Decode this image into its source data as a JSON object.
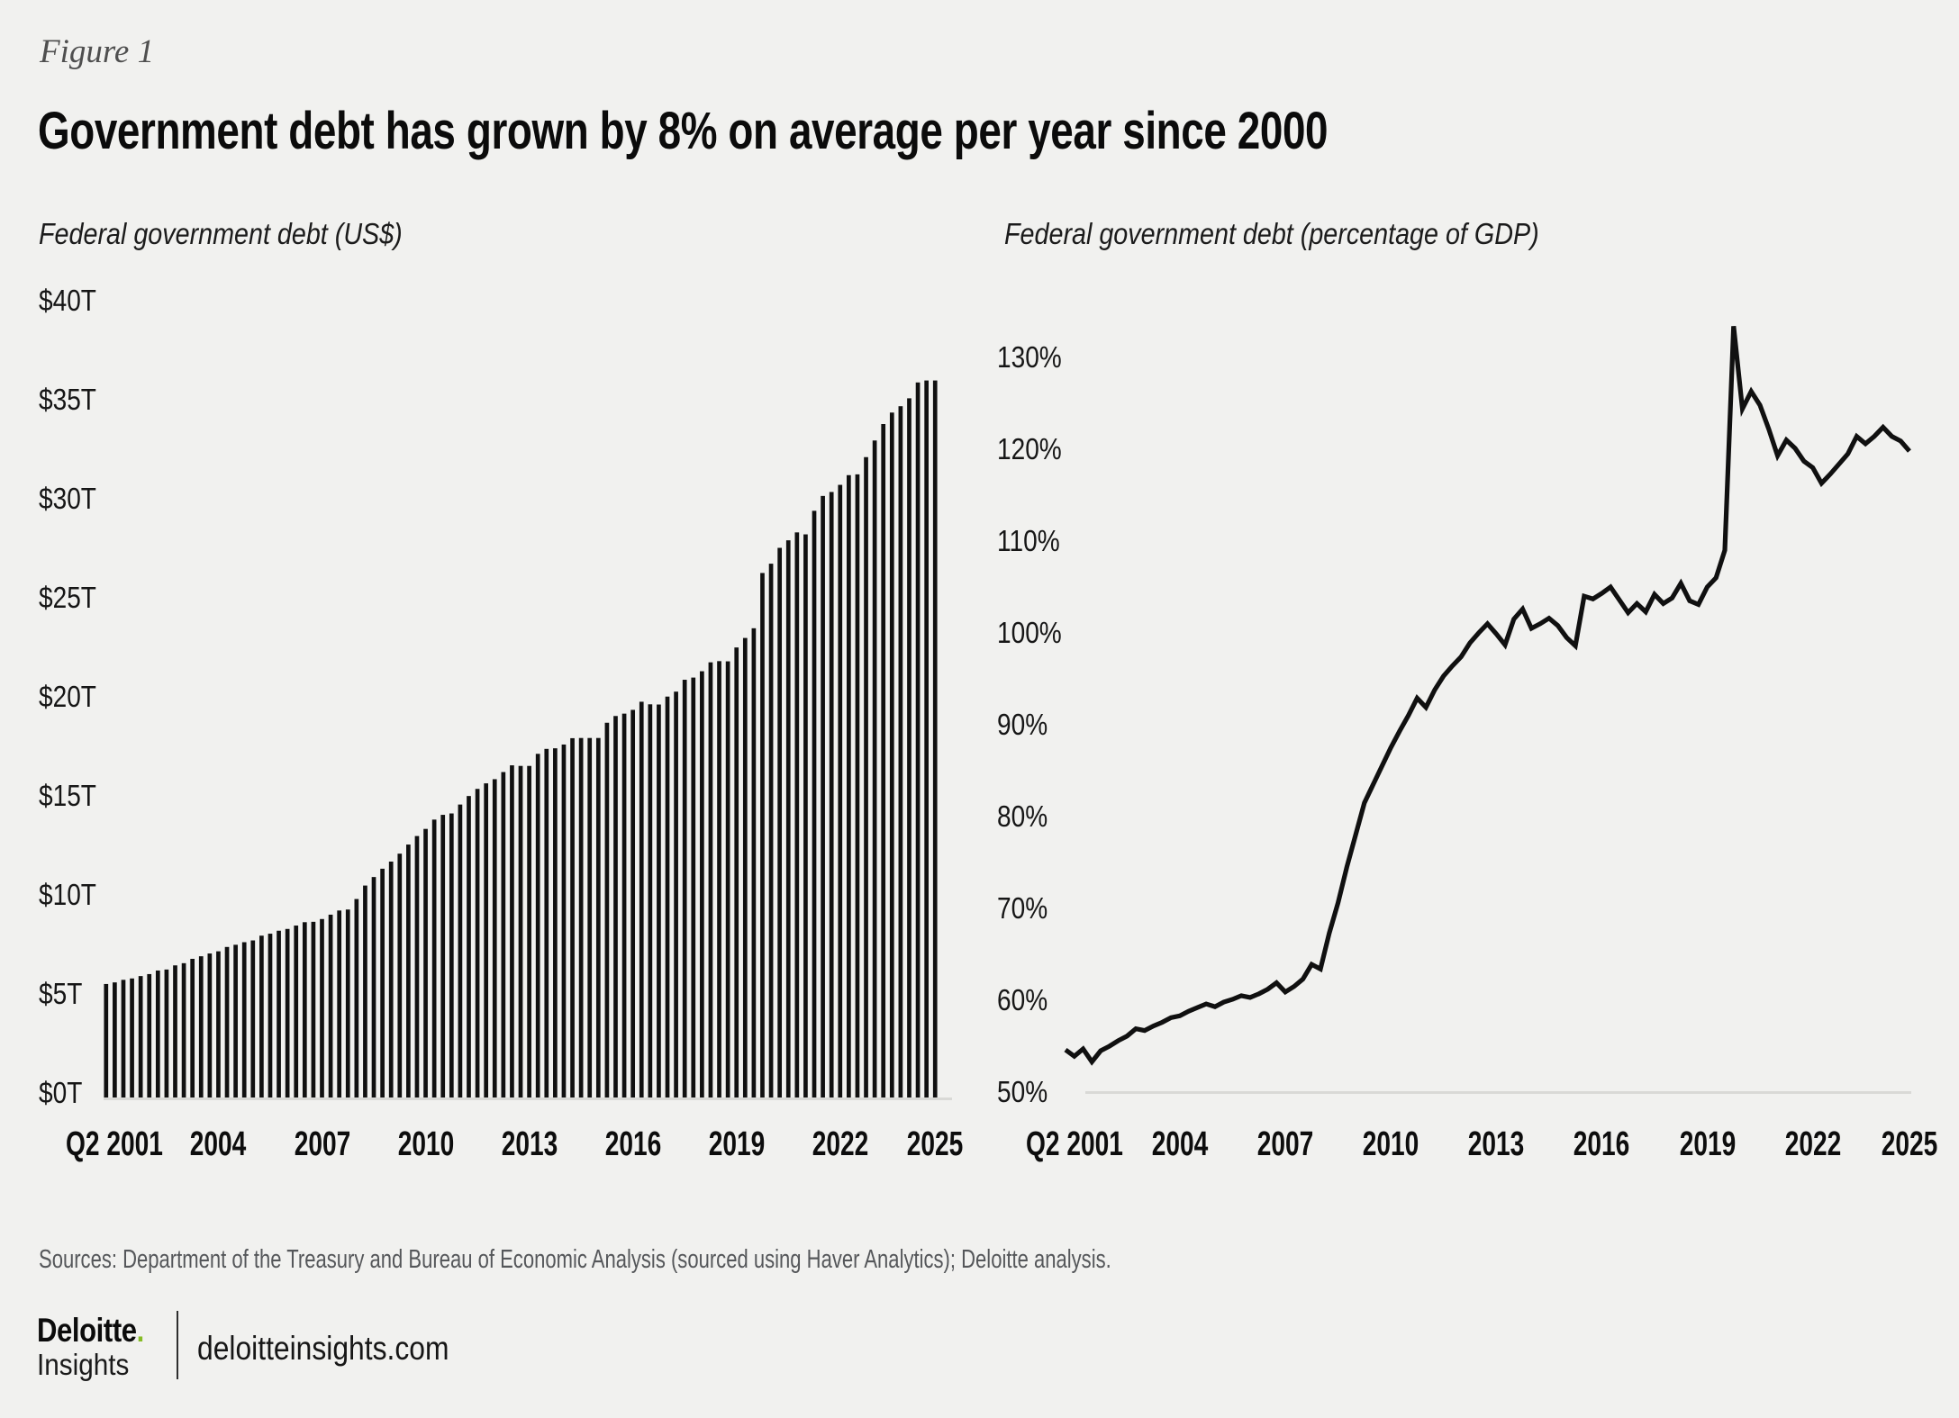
{
  "header": {
    "figure_label": "Figure 1",
    "title": "Government debt has grown by 8% on average per year since 2000"
  },
  "chart_data": [
    {
      "type": "bar",
      "title": "Federal government debt (US$)",
      "unit": "trillions of US dollars",
      "x_start": "2001 Q2",
      "x_end": "2025 Q2",
      "x_freq": "quarterly",
      "xtick_labels": [
        "Q2 2001",
        "2004",
        "2007",
        "2010",
        "2013",
        "2016",
        "2019",
        "2022",
        "2025"
      ],
      "xtick_quarter_index": [
        1,
        13,
        25,
        37,
        49,
        61,
        73,
        85,
        96
      ],
      "ytick_labels": [
        "$40T",
        "$35T",
        "$30T",
        "$25T",
        "$20T",
        "$15T",
        "$10T",
        "$5T",
        "$0T"
      ],
      "ylim": [
        0,
        40
      ],
      "values": [
        5.73,
        5.81,
        5.94,
        6.01,
        6.13,
        6.23,
        6.41,
        6.46,
        6.67,
        6.78,
        7.0,
        7.13,
        7.27,
        7.38,
        7.6,
        7.71,
        7.84,
        7.93,
        8.17,
        8.27,
        8.42,
        8.51,
        8.68,
        8.85,
        8.87,
        9.01,
        9.23,
        9.44,
        9.49,
        10.02,
        10.7,
        11.13,
        11.55,
        11.91,
        12.31,
        12.77,
        13.2,
        13.56,
        14.03,
        14.27,
        14.34,
        14.79,
        15.22,
        15.58,
        15.86,
        16.07,
        16.43,
        16.77,
        16.74,
        16.74,
        17.35,
        17.6,
        17.63,
        17.82,
        18.14,
        18.15,
        18.15,
        18.15,
        18.92,
        19.26,
        19.38,
        19.57,
        19.98,
        19.85,
        19.84,
        20.24,
        20.49,
        21.09,
        21.2,
        21.52,
        21.97,
        22.03,
        22.02,
        22.72,
        23.2,
        23.69,
        26.48,
        26.95,
        27.75,
        28.13,
        28.53,
        28.43,
        29.62,
        30.37,
        30.57,
        30.93,
        31.42,
        31.46,
        32.33,
        33.17,
        34.0,
        34.58,
        34.9,
        35.3,
        36.1,
        36.2,
        36.2
      ]
    },
    {
      "type": "line",
      "title": "Federal government debt (percentage of GDP)",
      "unit": "percent of GDP",
      "x_start": "2001 Q2",
      "x_end": "2025 Q2",
      "x_freq": "quarterly",
      "xtick_labels": [
        "Q2 2001",
        "2004",
        "2007",
        "2010",
        "2013",
        "2016",
        "2019",
        "2022",
        "2025"
      ],
      "xtick_quarter_index": [
        1,
        13,
        25,
        37,
        49,
        61,
        73,
        85,
        96
      ],
      "ytick_labels": [
        "130%",
        "120%",
        "110%",
        "100%",
        "90%",
        "80%",
        "70%",
        "60%",
        "50%"
      ],
      "ylim": [
        50,
        135
      ],
      "values": [
        54.6,
        53.9,
        54.7,
        53.3,
        54.5,
        55.0,
        55.6,
        56.1,
        56.9,
        56.7,
        57.2,
        57.6,
        58.1,
        58.3,
        58.8,
        59.2,
        59.6,
        59.3,
        59.8,
        60.1,
        60.5,
        60.3,
        60.7,
        61.2,
        61.9,
        60.9,
        61.5,
        62.3,
        63.9,
        63.4,
        67.3,
        70.6,
        74.5,
        78.0,
        81.5,
        83.5,
        85.5,
        87.5,
        89.3,
        91.0,
        92.9,
        91.9,
        93.8,
        95.3,
        96.4,
        97.4,
        98.9,
        100.0,
        101.0,
        99.9,
        98.7,
        101.5,
        102.6,
        100.5,
        101.0,
        101.6,
        100.8,
        99.5,
        98.6,
        104.0,
        103.7,
        104.3,
        105.0,
        103.6,
        102.2,
        103.2,
        102.3,
        104.2,
        103.2,
        103.8,
        105.4,
        103.5,
        103.1,
        105.0,
        106.0,
        109.0,
        133.4,
        124.4,
        126.3,
        124.8,
        122.2,
        119.3,
        121.0,
        120.1,
        118.7,
        118.0,
        116.3,
        117.3,
        118.4,
        119.5,
        121.4,
        120.6,
        121.4,
        122.4,
        121.4,
        120.9,
        119.8
      ]
    }
  ],
  "footer": {
    "sources": "Sources: Department of the Treasury and Bureau of Economic Analysis (sourced using Haver Analytics); Deloitte analysis.",
    "logo": {
      "brand": "Deloitte",
      "dot": ".",
      "sub_brand": "Insights",
      "website": "deloitteinsights.com"
    }
  },
  "colors": {
    "background": "#f1f1ef",
    "ink": "#101010",
    "axis_line": "#d9d9d6",
    "muted_text": "#55575a",
    "figure_label_text": "#4f4f4f",
    "deloitte_green": "#86BC25"
  }
}
